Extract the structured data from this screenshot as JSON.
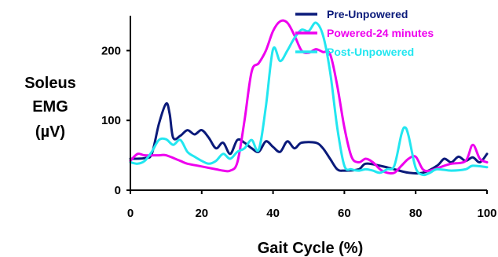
{
  "chart_data": {
    "type": "line",
    "xlabel": "Gait Cycle (%)",
    "ylabel_lines": [
      "Soleus",
      "EMG",
      "(µV)"
    ],
    "xlim": [
      0,
      100
    ],
    "ylim": [
      0,
      250
    ],
    "xticks": [
      0,
      20,
      40,
      60,
      80,
      100
    ],
    "yticks": [
      0,
      100,
      200
    ],
    "x_tick_labels": [
      "0",
      "20",
      "40",
      "60",
      "80",
      "100"
    ],
    "y_tick_labels": [
      "0",
      "100",
      "200"
    ],
    "grid": false,
    "legend_position": "top-right",
    "series": [
      {
        "name": "Pre-Unpowered",
        "color": "#0a1a7a",
        "points": [
          [
            0,
            45
          ],
          [
            4,
            46
          ],
          [
            6,
            52
          ],
          [
            8,
            95
          ],
          [
            10,
            124
          ],
          [
            11,
            110
          ],
          [
            12,
            75
          ],
          [
            14,
            78
          ],
          [
            16,
            86
          ],
          [
            18,
            80
          ],
          [
            20,
            86
          ],
          [
            22,
            75
          ],
          [
            24,
            60
          ],
          [
            26,
            68
          ],
          [
            28,
            52
          ],
          [
            30,
            72
          ],
          [
            32,
            68
          ],
          [
            34,
            60
          ],
          [
            36,
            55
          ],
          [
            38,
            70
          ],
          [
            40,
            62
          ],
          [
            42,
            55
          ],
          [
            44,
            70
          ],
          [
            46,
            60
          ],
          [
            48,
            68
          ],
          [
            52,
            68
          ],
          [
            54,
            60
          ],
          [
            56,
            45
          ],
          [
            58,
            30
          ],
          [
            60,
            28
          ],
          [
            64,
            30
          ],
          [
            66,
            38
          ],
          [
            70,
            35
          ],
          [
            74,
            30
          ],
          [
            78,
            25
          ],
          [
            82,
            25
          ],
          [
            86,
            35
          ],
          [
            88,
            45
          ],
          [
            90,
            40
          ],
          [
            92,
            48
          ],
          [
            94,
            42
          ],
          [
            96,
            47
          ],
          [
            98,
            40
          ],
          [
            100,
            52
          ]
        ]
      },
      {
        "name": "Powered-24 minutes",
        "color": "#ee00ee",
        "points": [
          [
            0,
            42
          ],
          [
            2,
            52
          ],
          [
            4,
            50
          ],
          [
            8,
            50
          ],
          [
            10,
            50
          ],
          [
            14,
            42
          ],
          [
            16,
            38
          ],
          [
            20,
            34
          ],
          [
            24,
            30
          ],
          [
            26,
            28
          ],
          [
            28,
            28
          ],
          [
            30,
            40
          ],
          [
            32,
            100
          ],
          [
            34,
            170
          ],
          [
            36,
            182
          ],
          [
            38,
            200
          ],
          [
            40,
            228
          ],
          [
            42,
            242
          ],
          [
            44,
            240
          ],
          [
            46,
            222
          ],
          [
            48,
            200
          ],
          [
            50,
            197
          ],
          [
            52,
            202
          ],
          [
            54,
            198
          ],
          [
            56,
            195
          ],
          [
            58,
            150
          ],
          [
            60,
            90
          ],
          [
            62,
            48
          ],
          [
            64,
            40
          ],
          [
            66,
            45
          ],
          [
            68,
            40
          ],
          [
            70,
            30
          ],
          [
            72,
            25
          ],
          [
            74,
            25
          ],
          [
            76,
            35
          ],
          [
            78,
            45
          ],
          [
            80,
            48
          ],
          [
            82,
            30
          ],
          [
            84,
            28
          ],
          [
            88,
            35
          ],
          [
            90,
            38
          ],
          [
            94,
            42
          ],
          [
            96,
            65
          ],
          [
            98,
            45
          ],
          [
            100,
            40
          ]
        ]
      },
      {
        "name": "Post-Unpowered",
        "color": "#22e6f0",
        "points": [
          [
            0,
            40
          ],
          [
            2,
            38
          ],
          [
            4,
            42
          ],
          [
            6,
            55
          ],
          [
            8,
            72
          ],
          [
            10,
            73
          ],
          [
            12,
            65
          ],
          [
            14,
            72
          ],
          [
            16,
            55
          ],
          [
            18,
            48
          ],
          [
            20,
            42
          ],
          [
            22,
            38
          ],
          [
            24,
            42
          ],
          [
            26,
            52
          ],
          [
            28,
            45
          ],
          [
            30,
            55
          ],
          [
            32,
            60
          ],
          [
            34,
            72
          ],
          [
            36,
            58
          ],
          [
            38,
            120
          ],
          [
            40,
            202
          ],
          [
            42,
            185
          ],
          [
            44,
            200
          ],
          [
            46,
            218
          ],
          [
            48,
            230
          ],
          [
            50,
            228
          ],
          [
            52,
            240
          ],
          [
            54,
            222
          ],
          [
            56,
            170
          ],
          [
            58,
            90
          ],
          [
            60,
            35
          ],
          [
            62,
            30
          ],
          [
            64,
            28
          ],
          [
            66,
            30
          ],
          [
            68,
            28
          ],
          [
            70,
            25
          ],
          [
            72,
            30
          ],
          [
            74,
            35
          ],
          [
            76,
            80
          ],
          [
            77,
            90
          ],
          [
            78,
            78
          ],
          [
            80,
            32
          ],
          [
            82,
            22
          ],
          [
            84,
            25
          ],
          [
            86,
            30
          ],
          [
            90,
            28
          ],
          [
            94,
            30
          ],
          [
            96,
            35
          ],
          [
            100,
            33
          ]
        ]
      }
    ]
  }
}
